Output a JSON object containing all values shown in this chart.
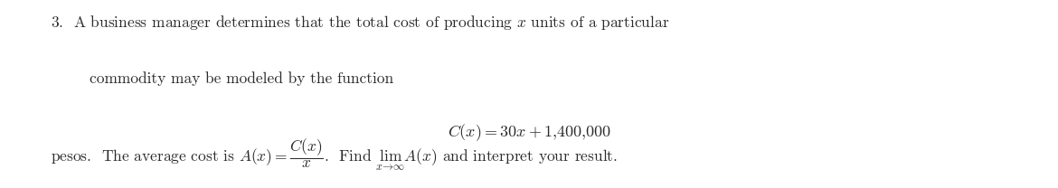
{
  "background_color": "#ffffff",
  "figsize": [
    11.7,
    2.08
  ],
  "dpi": 100,
  "text_color": "#2a2a2a",
  "font_size": 12.5
}
